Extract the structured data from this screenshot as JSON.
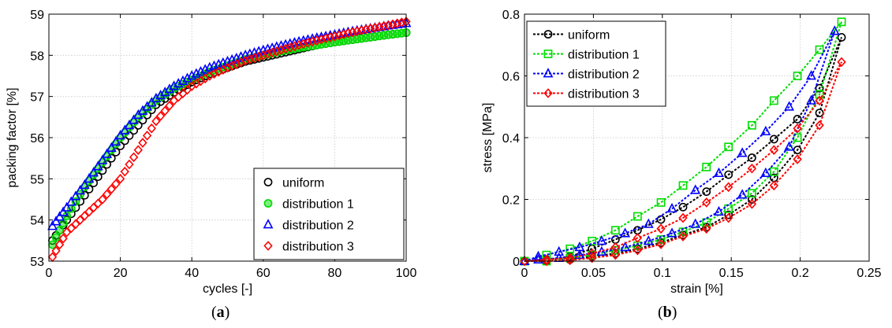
{
  "colors": {
    "uniform": "#000000",
    "distribution 1": "#00dd00",
    "distribution 2": "#0000ff",
    "distribution 3": "#ff0000"
  },
  "captions": [
    {
      "open": "(",
      "letter": "a",
      "close": ")"
    },
    {
      "open": "(",
      "letter": "b",
      "close": ")"
    }
  ],
  "chart_data": [
    {
      "type": "scatter",
      "title": "",
      "xlabel": "cycles [-]",
      "ylabel": "packing factor [%]",
      "xlim": [
        0,
        100
      ],
      "ylim": [
        53,
        59
      ],
      "xticks": [
        0,
        20,
        40,
        60,
        80,
        100
      ],
      "yticks": [
        53,
        54,
        55,
        56,
        57,
        58,
        59
      ],
      "grid": true,
      "legend_position": "bottom-right",
      "series": [
        {
          "name": "uniform",
          "marker": "circle",
          "x": [
            1,
            5,
            10,
            15,
            20,
            25,
            30,
            35,
            40,
            45,
            50,
            55,
            60,
            65,
            70,
            75,
            80,
            85,
            90,
            95,
            100
          ],
          "y": [
            53.5,
            54.0,
            54.6,
            55.2,
            55.8,
            56.3,
            56.8,
            57.1,
            57.35,
            57.55,
            57.7,
            57.85,
            57.95,
            58.05,
            58.15,
            58.25,
            58.32,
            58.38,
            58.44,
            58.5,
            58.55
          ]
        },
        {
          "name": "distribution 1",
          "marker": "circle-filled",
          "x": [
            1,
            5,
            10,
            15,
            20,
            25,
            30,
            35,
            40,
            45,
            50,
            55,
            60,
            65,
            70,
            75,
            80,
            85,
            90,
            95,
            100
          ],
          "y": [
            53.4,
            54.1,
            54.8,
            55.4,
            56.0,
            56.5,
            56.9,
            57.2,
            57.4,
            57.6,
            57.75,
            57.9,
            58.0,
            58.1,
            58.18,
            58.25,
            58.32,
            58.38,
            58.44,
            58.5,
            58.55
          ]
        },
        {
          "name": "distribution 2",
          "marker": "triangle",
          "x": [
            1,
            5,
            10,
            15,
            20,
            25,
            30,
            35,
            40,
            45,
            50,
            55,
            60,
            65,
            70,
            75,
            80,
            85,
            90,
            95,
            100
          ],
          "y": [
            53.85,
            54.3,
            54.85,
            55.45,
            56.05,
            56.55,
            56.95,
            57.25,
            57.5,
            57.7,
            57.85,
            58.0,
            58.12,
            58.23,
            58.33,
            58.42,
            58.5,
            58.58,
            58.65,
            58.72,
            58.78
          ]
        },
        {
          "name": "distribution 3",
          "marker": "diamond",
          "x": [
            1,
            5,
            10,
            15,
            20,
            25,
            30,
            35,
            40,
            45,
            50,
            55,
            60,
            65,
            70,
            75,
            80,
            85,
            90,
            95,
            100
          ],
          "y": [
            53.1,
            53.7,
            54.1,
            54.5,
            55.0,
            55.7,
            56.4,
            56.9,
            57.25,
            57.5,
            57.7,
            57.87,
            58.0,
            58.13,
            58.25,
            58.36,
            58.46,
            58.56,
            58.65,
            58.73,
            58.82
          ]
        }
      ]
    },
    {
      "type": "line",
      "title": "",
      "xlabel": "strain [%]",
      "ylabel": "stress [MPa]",
      "xlim": [
        0,
        0.25
      ],
      "ylim": [
        0,
        0.8
      ],
      "xticks": [
        0,
        0.05,
        0.1,
        0.15,
        0.2,
        0.25
      ],
      "yticks": [
        0,
        0.2,
        0.4,
        0.6,
        0.8
      ],
      "grid": true,
      "legend_position": "top-left",
      "series": [
        {
          "name": "uniform",
          "marker": "circle",
          "x": [
            0,
            0.016,
            0.033,
            0.049,
            0.066,
            0.082,
            0.099,
            0.115,
            0.132,
            0.148,
            0.165,
            0.181,
            0.198,
            0.214,
            0.23,
            0.214,
            0.198,
            0.181,
            0.165,
            0.148,
            0.132,
            0.115,
            0.099,
            0.082,
            0.066,
            0.049,
            0.033,
            0.016,
            0
          ],
          "y": [
            0,
            0.005,
            0.015,
            0.04,
            0.07,
            0.1,
            0.135,
            0.175,
            0.225,
            0.28,
            0.335,
            0.395,
            0.46,
            0.56,
            0.725,
            0.48,
            0.36,
            0.27,
            0.2,
            0.15,
            0.11,
            0.085,
            0.06,
            0.04,
            0.025,
            0.015,
            0.005,
            0,
            0
          ]
        },
        {
          "name": "distribution 1",
          "marker": "square",
          "x": [
            0,
            0.016,
            0.033,
            0.049,
            0.066,
            0.082,
            0.099,
            0.115,
            0.132,
            0.148,
            0.165,
            0.181,
            0.198,
            0.214,
            0.23,
            0.214,
            0.198,
            0.181,
            0.165,
            0.148,
            0.132,
            0.115,
            0.099,
            0.082,
            0.066,
            0.049,
            0.033,
            0.016,
            0
          ],
          "y": [
            0,
            0.02,
            0.04,
            0.065,
            0.1,
            0.145,
            0.19,
            0.245,
            0.305,
            0.37,
            0.44,
            0.52,
            0.6,
            0.685,
            0.775,
            0.54,
            0.4,
            0.29,
            0.22,
            0.17,
            0.125,
            0.095,
            0.07,
            0.05,
            0.035,
            0.02,
            0.01,
            0,
            0
          ]
        },
        {
          "name": "distribution 2",
          "marker": "triangle",
          "x": [
            0,
            0.01,
            0.025,
            0.04,
            0.056,
            0.073,
            0.09,
            0.107,
            0.124,
            0.141,
            0.158,
            0.175,
            0.192,
            0.208,
            0.225,
            0.208,
            0.192,
            0.175,
            0.158,
            0.141,
            0.124,
            0.107,
            0.09,
            0.073,
            0.056,
            0.04,
            0.025,
            0.01,
            0
          ],
          "y": [
            0,
            0.015,
            0.03,
            0.045,
            0.065,
            0.09,
            0.12,
            0.17,
            0.23,
            0.285,
            0.35,
            0.42,
            0.5,
            0.6,
            0.745,
            0.52,
            0.37,
            0.285,
            0.215,
            0.16,
            0.12,
            0.09,
            0.065,
            0.045,
            0.03,
            0.02,
            0.01,
            0.005,
            0
          ]
        },
        {
          "name": "distribution 3",
          "marker": "diamond",
          "x": [
            0,
            0.016,
            0.033,
            0.049,
            0.066,
            0.082,
            0.099,
            0.115,
            0.132,
            0.148,
            0.165,
            0.181,
            0.198,
            0.214,
            0.23,
            0.214,
            0.198,
            0.181,
            0.165,
            0.148,
            0.132,
            0.115,
            0.099,
            0.082,
            0.066,
            0.049,
            0.033,
            0.016,
            0
          ],
          "y": [
            0,
            0.005,
            0.01,
            0.025,
            0.045,
            0.075,
            0.105,
            0.14,
            0.19,
            0.24,
            0.3,
            0.36,
            0.43,
            0.52,
            0.645,
            0.44,
            0.33,
            0.245,
            0.185,
            0.14,
            0.105,
            0.08,
            0.055,
            0.035,
            0.02,
            0.01,
            0.003,
            0,
            0
          ]
        }
      ]
    }
  ]
}
